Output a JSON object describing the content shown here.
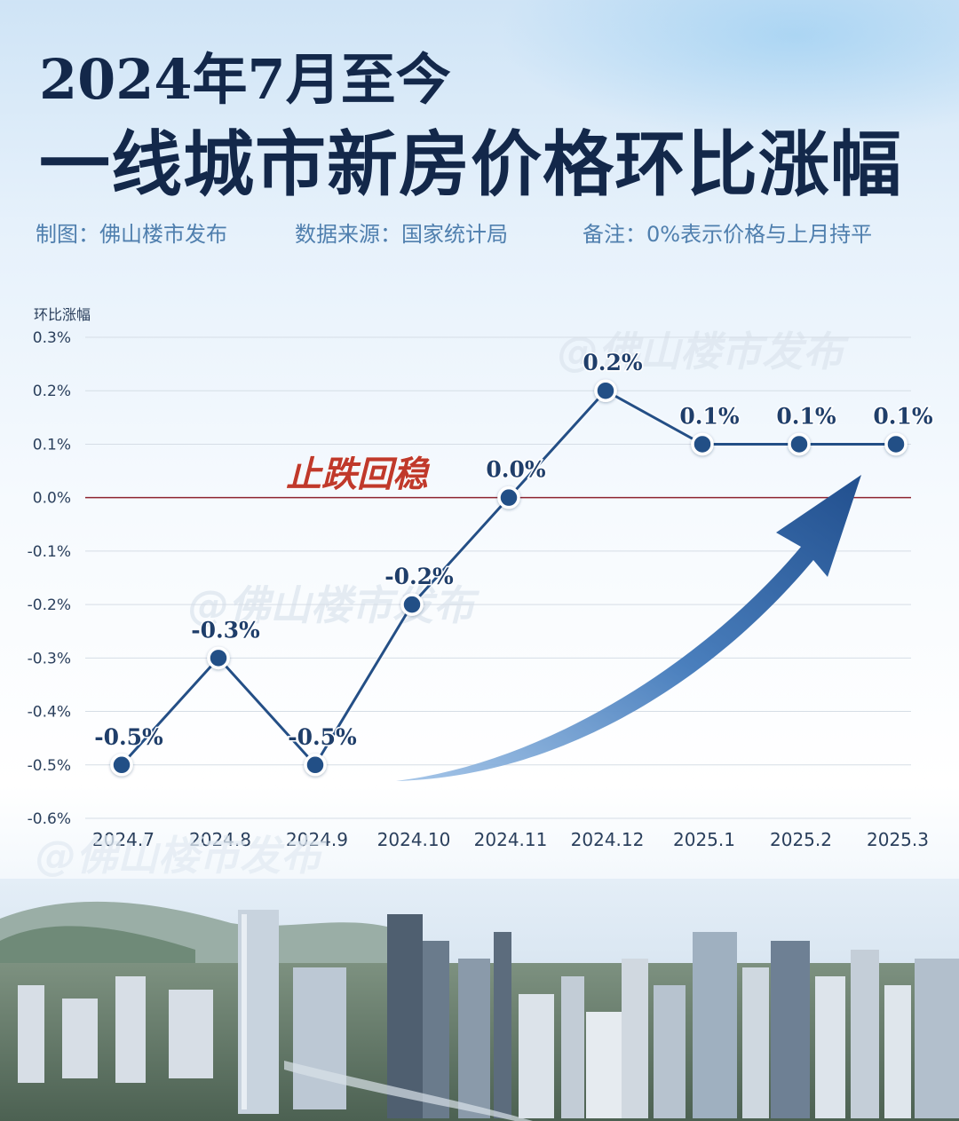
{
  "header": {
    "title_line1": "2024年7月至今",
    "title_line2": "一线城市新房价格环比涨幅",
    "credit": "制图：佛山楼市发布",
    "source": "数据来源：国家统计局",
    "note": "备注：0%表示价格与上月持平"
  },
  "watermark": "@佛山楼市发布",
  "colors": {
    "title": "#13284a",
    "subtitle": "#4f7fae",
    "line": "#244f86",
    "zero_line": "#8e2430",
    "annotation": "#c0392b",
    "arrow": "#2f5e99"
  },
  "chart_data": {
    "type": "line",
    "ylabel": "环比涨幅",
    "categories": [
      "2024.7",
      "2024.8",
      "2024.9",
      "2024.10",
      "2024.11",
      "2024.12",
      "2025.1",
      "2025.2",
      "2025.3"
    ],
    "values": [
      -0.5,
      -0.3,
      -0.5,
      -0.2,
      0.0,
      0.2,
      0.1,
      0.1,
      0.1
    ],
    "data_labels": [
      "-0.5%",
      "-0.3%",
      "-0.5%",
      "-0.2%",
      "0.0%",
      "0.2%",
      "0.1%",
      "0.1%",
      "0.1%"
    ],
    "yticks": [
      "0.3%",
      "0.2%",
      "0.1%",
      "0.0%",
      "-0.1%",
      "-0.2%",
      "-0.3%",
      "-0.4%",
      "-0.5%",
      "-0.6%"
    ],
    "ytick_values": [
      0.3,
      0.2,
      0.1,
      0.0,
      -0.1,
      -0.2,
      -0.3,
      -0.4,
      -0.5,
      -0.6
    ],
    "ylim": [
      -0.6,
      0.3
    ],
    "grid": true,
    "annotation": "止跌回稳"
  }
}
